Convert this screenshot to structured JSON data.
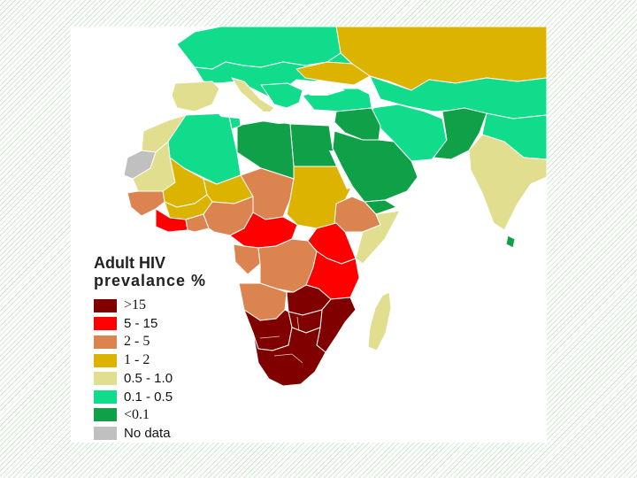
{
  "legend": {
    "title_line1": "Adult HIV",
    "title_line2": "prevalance %",
    "items": [
      {
        "label": ">15",
        "color": "#800000",
        "font": "serif"
      },
      {
        "label": "5 - 15",
        "color": "#ff0000",
        "font": "sans"
      },
      {
        "label": "2 - 5",
        "color": "#dc8450",
        "font": "serif"
      },
      {
        "label": "1 - 2",
        "color": "#dcb400",
        "font": "serif"
      },
      {
        "label": "0.5 - 1.0",
        "color": "#e2de90",
        "font": "sans"
      },
      {
        "label": "0.1 - 0.5",
        "color": "#10dc8c",
        "font": "sans"
      },
      {
        "label": "<0.1",
        "color": "#10a048",
        "font": "serif"
      },
      {
        "label": "No data",
        "color": "#c0c0c0",
        "font": "sans"
      }
    ]
  },
  "map": {
    "regions": [
      {
        "name": "europe",
        "category": "0.1 - 0.5"
      },
      {
        "name": "russia",
        "category": "1 - 2"
      },
      {
        "name": "ukraine",
        "category": "1 - 2"
      },
      {
        "name": "spain",
        "category": "0.5 - 1.0"
      },
      {
        "name": "italy",
        "category": "0.5 - 1.0"
      },
      {
        "name": "turkey",
        "category": "0.1 - 0.5"
      },
      {
        "name": "iran",
        "category": "0.1 - 0.5"
      },
      {
        "name": "afghanistan",
        "category": "<0.1"
      },
      {
        "name": "india",
        "category": "0.5 - 1.0"
      },
      {
        "name": "sri-lanka",
        "category": "<0.1"
      },
      {
        "name": "arabia",
        "category": "<0.1"
      },
      {
        "name": "iraq",
        "category": "<0.1"
      },
      {
        "name": "egypt",
        "category": "<0.1"
      },
      {
        "name": "libya",
        "category": "<0.1"
      },
      {
        "name": "algeria",
        "category": "0.1 - 0.5"
      },
      {
        "name": "morocco",
        "category": "0.5 - 1.0"
      },
      {
        "name": "western-sahara",
        "category": "No data"
      },
      {
        "name": "mauritania",
        "category": "0.5 - 1.0"
      },
      {
        "name": "mali-niger",
        "category": "1 - 2"
      },
      {
        "name": "chad",
        "category": "2 - 5"
      },
      {
        "name": "sudan",
        "category": "1 - 2"
      },
      {
        "name": "ethiopia",
        "category": "2 - 5"
      },
      {
        "name": "somalia",
        "category": "0.5 - 1.0"
      },
      {
        "name": "west-africa",
        "category": "2 - 5"
      },
      {
        "name": "ivory-coast",
        "category": "5 - 15"
      },
      {
        "name": "nigeria",
        "category": "2 - 5"
      },
      {
        "name": "central-africa",
        "category": "5 - 15"
      },
      {
        "name": "dr-congo",
        "category": "2 - 5"
      },
      {
        "name": "kenya-uganda",
        "category": "5 - 15"
      },
      {
        "name": "tanzania",
        "category": "5 - 15"
      },
      {
        "name": "angola",
        "category": "2 - 5"
      },
      {
        "name": "zambia-zimbabwe",
        "category": "> 15"
      },
      {
        "name": "mozambique",
        "category": "> 15"
      },
      {
        "name": "southern-africa",
        "category": "> 15"
      },
      {
        "name": "madagascar",
        "category": "0.5 - 1.0"
      }
    ]
  }
}
